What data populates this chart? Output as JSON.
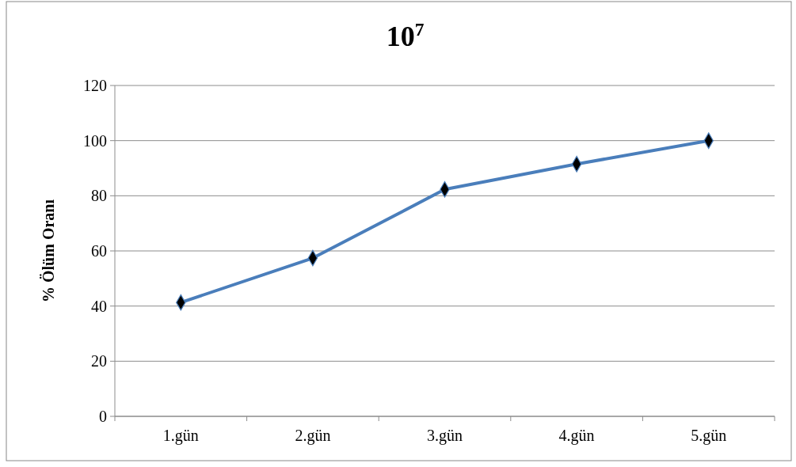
{
  "chart_data": {
    "type": "line",
    "title": "10$^{7}$",
    "ylabel": "% Ölüm Oranı",
    "categories": [
      "1.gün",
      "2.gün",
      "3.gün",
      "4.gün",
      "5.gün"
    ],
    "series": [
      {
        "color": "#4a7ebb",
        "values": [
          41.3,
          57.4,
          82.3,
          91.5,
          100
        ]
      }
    ],
    "ylim": [
      0,
      120
    ],
    "yticks": [
      0,
      20,
      40,
      60,
      80,
      100,
      120
    ],
    "grid": "y",
    "marker": "diamond",
    "line_style": "solid"
  }
}
